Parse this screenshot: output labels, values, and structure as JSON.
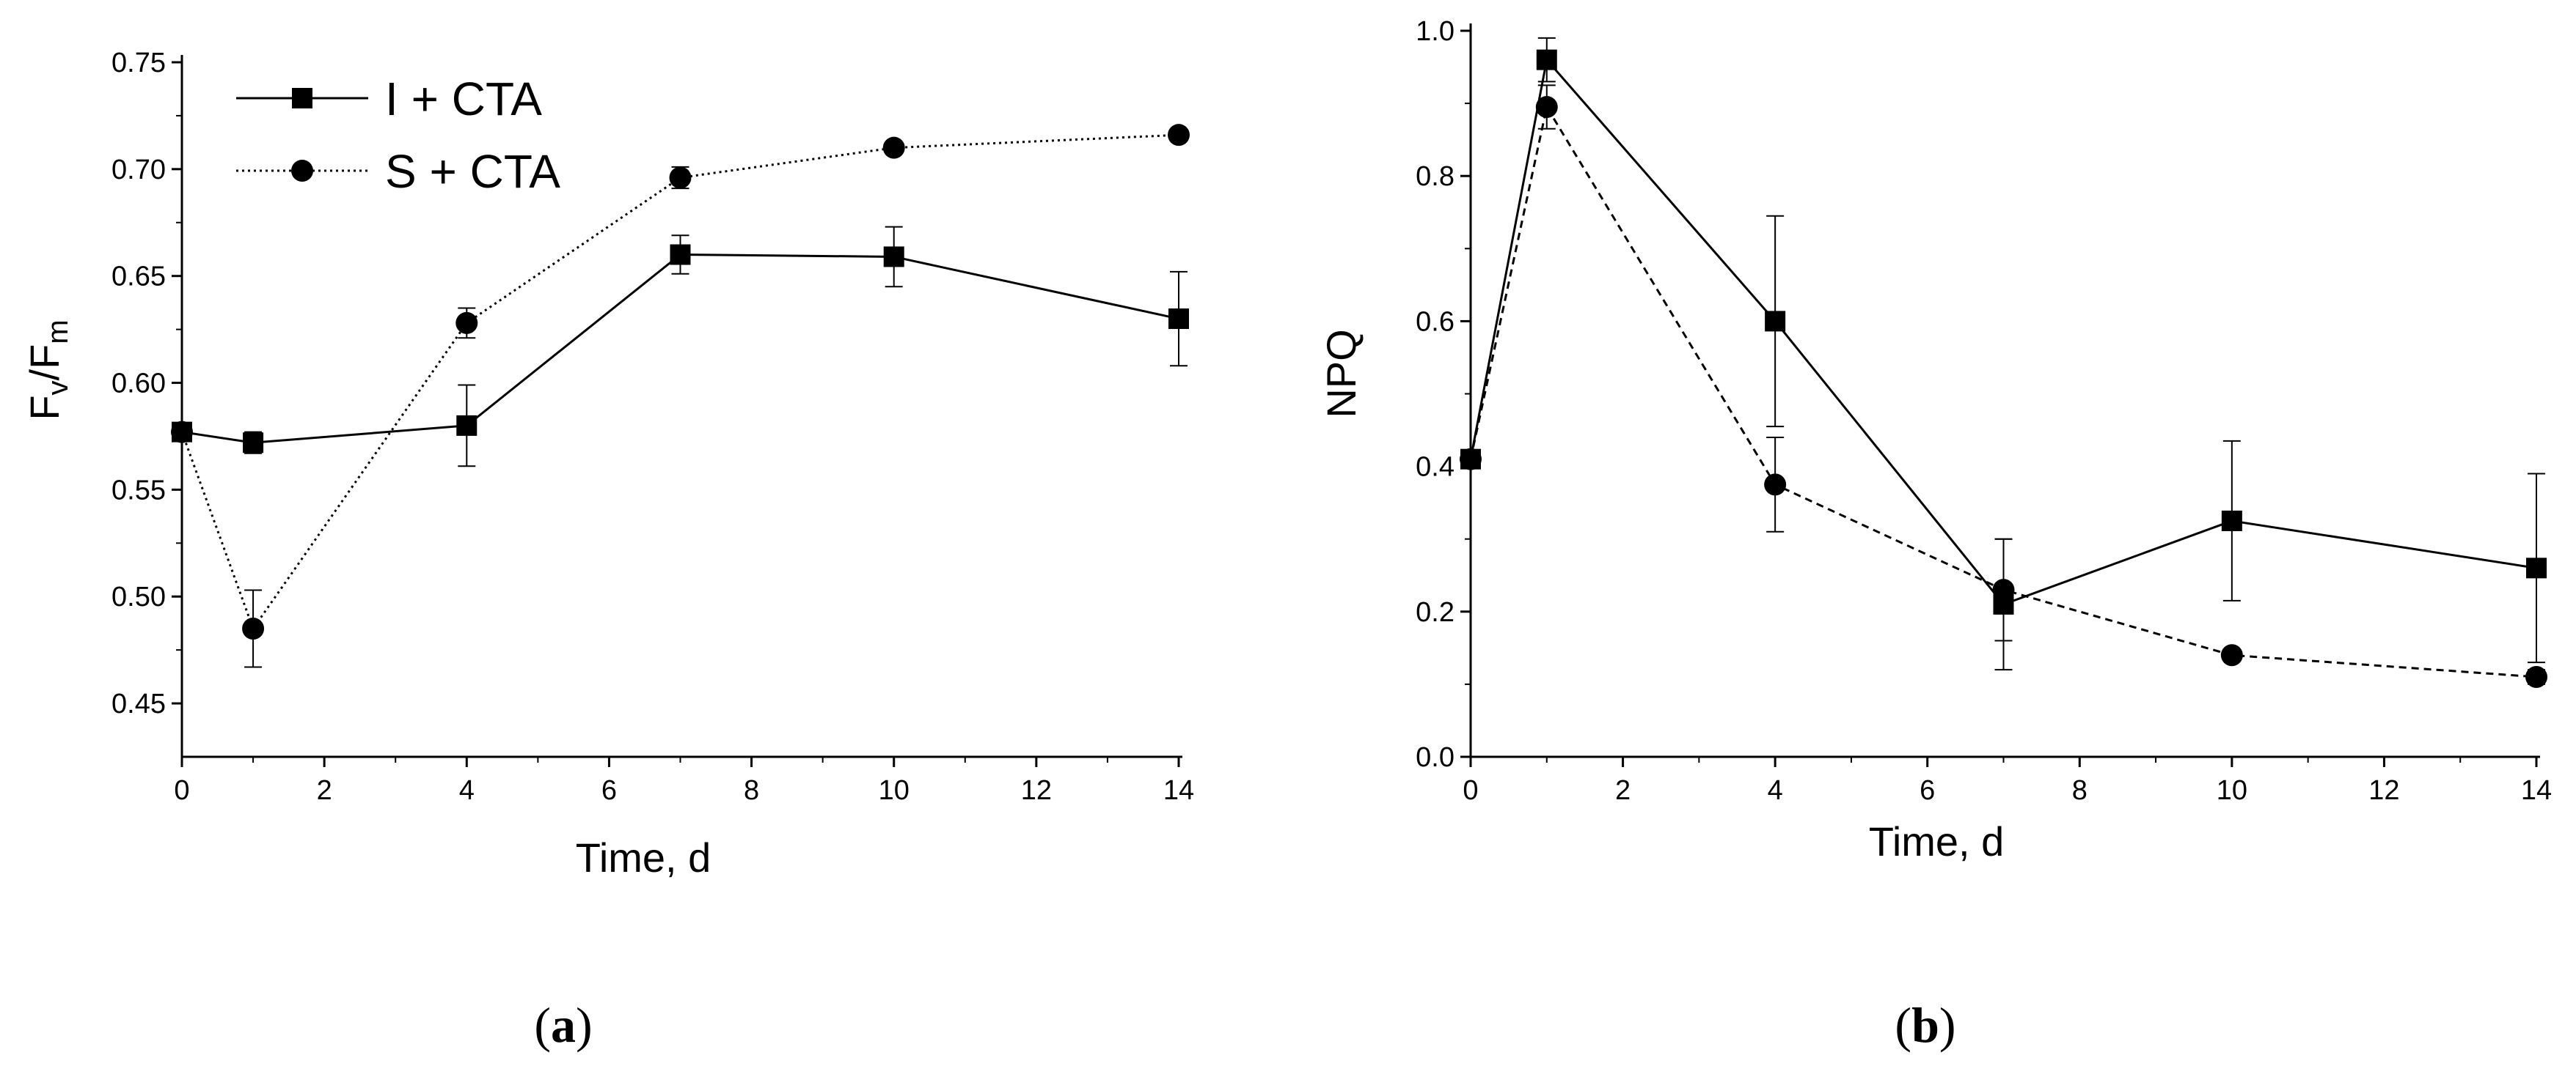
{
  "chart_data": [
    {
      "type": "line",
      "panel_label": "a",
      "xlabel": "Time, d",
      "ylabel_main": "F",
      "ylabel_sub1": "v",
      "ylabel_mid": "/F",
      "ylabel_sub2": "m",
      "xlim": [
        0,
        14
      ],
      "ylim": [
        0.425,
        0.75
      ],
      "xticks": [
        0,
        2,
        4,
        6,
        8,
        10,
        12,
        14
      ],
      "xtick_labels": [
        "0",
        "2",
        "4",
        "6",
        "8",
        "10",
        "12",
        "14"
      ],
      "yticks": [
        0.45,
        0.5,
        0.55,
        0.6,
        0.65,
        0.7,
        0.75
      ],
      "ytick_labels": [
        "0.45",
        "0.50",
        "0.55",
        "0.60",
        "0.65",
        "0.70",
        "0.75"
      ],
      "legend_position": "top-left",
      "series": [
        {
          "name": "I + CTA",
          "marker": "square",
          "line": "solid",
          "x": [
            0,
            1,
            4,
            7,
            10,
            14
          ],
          "y": [
            0.577,
            0.572,
            0.58,
            0.66,
            0.659,
            0.63
          ],
          "err": [
            0.003,
            0.005,
            0.019,
            0.009,
            0.014,
            0.022
          ]
        },
        {
          "name": "S + CTA",
          "marker": "circle",
          "line": "dotted",
          "x": [
            0,
            1,
            4,
            7,
            10,
            14
          ],
          "y": [
            0.577,
            0.485,
            0.628,
            0.696,
            0.71,
            0.716
          ],
          "err": [
            0.002,
            0.018,
            0.007,
            0.005,
            0.0,
            0.0
          ]
        }
      ]
    },
    {
      "type": "line",
      "panel_label": "b",
      "xlabel": "Time, d",
      "ylabel": "NPQ",
      "xlim": [
        0,
        14
      ],
      "ylim": [
        0,
        1.0
      ],
      "xticks": [
        0,
        2,
        4,
        6,
        8,
        10,
        12,
        14
      ],
      "xtick_labels": [
        "0",
        "2",
        "4",
        "6",
        "8",
        "10",
        "12",
        "14"
      ],
      "yticks": [
        0.0,
        0.2,
        0.4,
        0.6,
        0.8,
        1.0
      ],
      "ytick_labels": [
        "0.0",
        "0.2",
        "0.4",
        "0.6",
        "0.8",
        "1.0"
      ],
      "series": [
        {
          "name": "I + CTA",
          "marker": "square",
          "line": "solid",
          "x": [
            0,
            1,
            4,
            7,
            10,
            14
          ],
          "y": [
            0.41,
            0.96,
            0.6,
            0.21,
            0.325,
            0.26
          ],
          "err": [
            0.01,
            0.03,
            0.145,
            0.09,
            0.11,
            0.13
          ]
        },
        {
          "name": "S + CTA",
          "marker": "circle",
          "line": "dashed",
          "x": [
            0,
            1,
            4,
            7,
            10,
            14
          ],
          "y": [
            0.41,
            0.895,
            0.375,
            0.23,
            0.14,
            0.11
          ],
          "err": [
            0.01,
            0.03,
            0.065,
            0.07,
            0.0,
            0.01
          ]
        }
      ]
    }
  ]
}
